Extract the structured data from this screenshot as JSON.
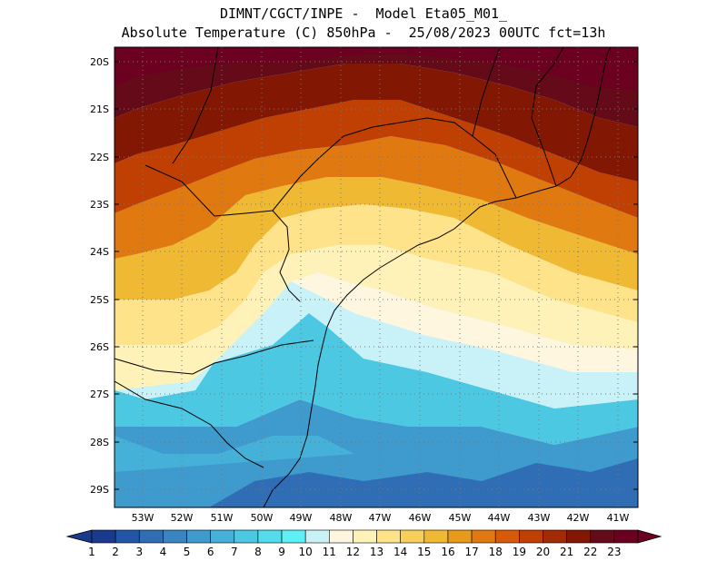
{
  "header": {
    "line1": "DIMNT/CGCT/INPE -  Model Eta05_M01_",
    "line2": "Absolute Temperature (C) 850hPa -  25/08/2023 00UTC fct=13h"
  },
  "map": {
    "lat_labels": [
      "20S",
      "21S",
      "22S",
      "23S",
      "24S",
      "25S",
      "26S",
      "27S",
      "28S",
      "29S"
    ],
    "lon_labels": [
      "53W",
      "52W",
      "51W",
      "50W",
      "49W",
      "48W",
      "47W",
      "46W",
      "45W",
      "44W",
      "43W",
      "42W",
      "41W"
    ]
  },
  "colorbar": {
    "labels": [
      "1",
      "2",
      "3",
      "4",
      "5",
      "6",
      "7",
      "8",
      "9",
      "10",
      "11",
      "12",
      "13",
      "14",
      "15",
      "16",
      "17",
      "18",
      "19",
      "20",
      "21",
      "22",
      "23"
    ],
    "colors": [
      "#1a3a8c",
      "#2255a5",
      "#2f6db5",
      "#3a85c1",
      "#3f9bcd",
      "#45b1d8",
      "#4cc8e3",
      "#52dcec",
      "#5ef0f4",
      "#c8f2f8",
      "#fff6e0",
      "#fff2b8",
      "#ffe38a",
      "#f9cf5c",
      "#f0b934",
      "#e89a1a",
      "#e07a10",
      "#d65a08",
      "#c04004",
      "#a22a04",
      "#821804",
      "#640a18",
      "#6b0020"
    ]
  }
}
